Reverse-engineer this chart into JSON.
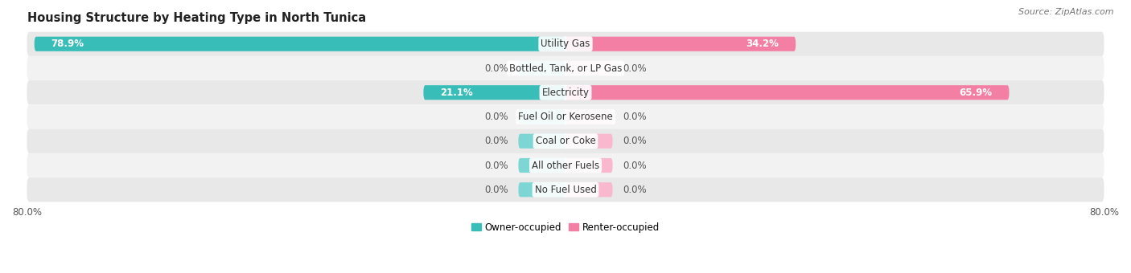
{
  "title": "Housing Structure by Heating Type in North Tunica",
  "source": "Source: ZipAtlas.com",
  "categories": [
    "Utility Gas",
    "Bottled, Tank, or LP Gas",
    "Electricity",
    "Fuel Oil or Kerosene",
    "Coal or Coke",
    "All other Fuels",
    "No Fuel Used"
  ],
  "owner_values": [
    78.9,
    0.0,
    21.1,
    0.0,
    0.0,
    0.0,
    0.0
  ],
  "renter_values": [
    34.2,
    0.0,
    65.9,
    0.0,
    0.0,
    0.0,
    0.0
  ],
  "owner_color": "#38bdb8",
  "renter_color": "#f47fa4",
  "owner_color_zero": "#7dd6d3",
  "renter_color_zero": "#f9b8ce",
  "row_bg_colors": [
    "#e8e8e8",
    "#f2f2f2"
  ],
  "axis_limit": 80.0,
  "zero_bar_width": 7.0,
  "title_fontsize": 10.5,
  "label_fontsize": 8.5,
  "value_fontsize": 8.5,
  "tick_fontsize": 8.5,
  "source_fontsize": 8
}
